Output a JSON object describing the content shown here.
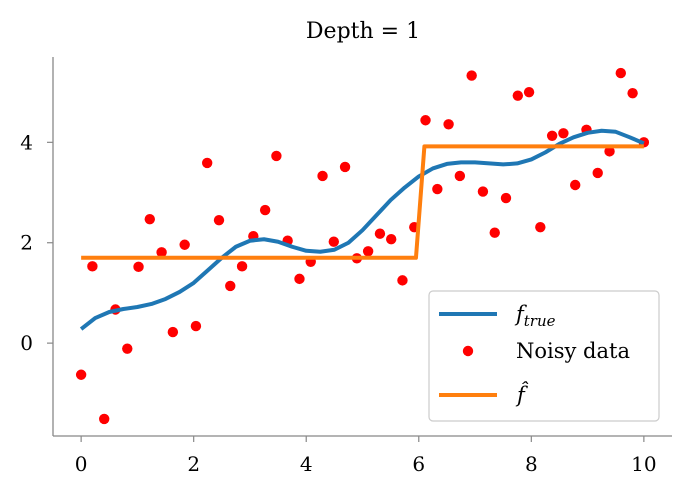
{
  "chart_data": {
    "type": "scatter",
    "title": "Depth = 1",
    "xlabel": "",
    "ylabel": "",
    "xlim": [
      -0.5,
      10.5
    ],
    "ylim": [
      -1.85,
      5.7
    ],
    "xticks": [
      0,
      2,
      4,
      6,
      8,
      10
    ],
    "yticks": [
      0,
      2,
      4
    ],
    "grid": false,
    "legend_placement": "lower-right",
    "colors": {
      "true_curve": "#1f77b4",
      "noisy_points": "#ff0000",
      "fit_step": "#ff7f0e",
      "axis": "#888888"
    },
    "series": [
      {
        "name": "f_true",
        "kind": "line",
        "x": [
          0,
          0.25,
          0.5,
          0.75,
          1.0,
          1.25,
          1.5,
          1.75,
          2.0,
          2.25,
          2.5,
          2.75,
          3.0,
          3.25,
          3.5,
          3.75,
          4.0,
          4.25,
          4.5,
          4.75,
          5.0,
          5.25,
          5.5,
          5.75,
          6.0,
          6.25,
          6.5,
          6.75,
          7.0,
          7.25,
          7.5,
          7.75,
          8.0,
          8.25,
          8.5,
          8.75,
          9.0,
          9.25,
          9.5,
          9.75,
          10.0
        ],
        "y": [
          0.28,
          0.5,
          0.62,
          0.68,
          0.72,
          0.78,
          0.88,
          1.02,
          1.2,
          1.45,
          1.7,
          1.92,
          2.04,
          2.07,
          2.02,
          1.92,
          1.84,
          1.82,
          1.86,
          2.0,
          2.25,
          2.55,
          2.85,
          3.1,
          3.32,
          3.48,
          3.57,
          3.6,
          3.6,
          3.58,
          3.56,
          3.58,
          3.66,
          3.8,
          3.97,
          4.1,
          4.19,
          4.23,
          4.21,
          4.1,
          3.98
        ]
      },
      {
        "name": "Noisy data",
        "kind": "scatter",
        "x": [
          0.0,
          0.2,
          0.41,
          0.61,
          0.82,
          1.02,
          1.22,
          1.43,
          1.63,
          1.84,
          2.04,
          2.24,
          2.45,
          2.65,
          2.86,
          3.06,
          3.27,
          3.47,
          3.67,
          3.88,
          4.08,
          4.29,
          4.49,
          4.69,
          4.9,
          5.1,
          5.31,
          5.51,
          5.71,
          5.92,
          6.12,
          6.33,
          6.53,
          6.73,
          6.94,
          7.14,
          7.35,
          7.55,
          7.76,
          7.96,
          8.16,
          8.37,
          8.57,
          8.78,
          8.98,
          9.18,
          9.39,
          9.59,
          9.8,
          10.0
        ],
        "y": [
          -0.63,
          1.53,
          -1.51,
          0.67,
          -0.11,
          1.52,
          2.47,
          1.81,
          0.22,
          1.96,
          0.34,
          3.59,
          2.45,
          1.14,
          1.53,
          2.13,
          2.65,
          3.73,
          2.04,
          1.28,
          1.62,
          3.33,
          2.02,
          3.51,
          1.69,
          1.83,
          2.18,
          2.07,
          1.25,
          2.31,
          4.44,
          3.07,
          4.36,
          3.33,
          5.33,
          3.02,
          2.2,
          2.89,
          4.93,
          5.0,
          2.31,
          4.13,
          4.18,
          3.15,
          4.25,
          3.39,
          3.82,
          5.38,
          4.98,
          4.0
        ]
      },
      {
        "name": "f_hat",
        "kind": "step",
        "x": [
          0,
          5.95,
          6.1,
          10.0
        ],
        "y": [
          1.7,
          1.7,
          3.92,
          3.92
        ]
      }
    ]
  },
  "legend": {
    "entries": [
      {
        "label_main": "f",
        "label_sub": "true"
      },
      {
        "label_main": "Noisy data"
      },
      {
        "label_main": "f̂"
      }
    ]
  }
}
